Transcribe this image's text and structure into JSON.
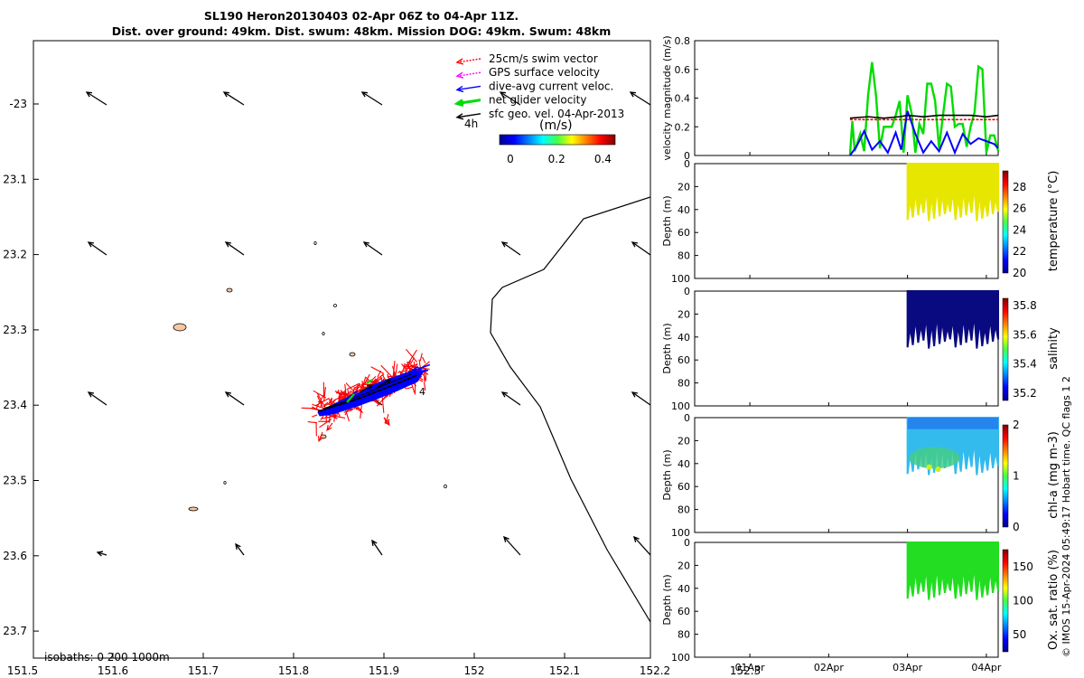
{
  "title": {
    "line1": "SL190 Heron20130403 02-Apr 06Z to 04-Apr 11Z.",
    "line2": "Dist. over ground: 49km. Dist. swum: 48km. Mission DOG: 49km. Swum: 48km"
  },
  "colors": {
    "swim_vector": "#ff0000",
    "gps_surface": "#ff00ff",
    "dive_avg": "#0000ff",
    "net_glider": "#00dd00",
    "sfc_geo": "#000000",
    "yellow_temp": "#e6e600",
    "navy_sal": "#0a0a80",
    "green_ox": "#22dd22",
    "reef": "#f7c8a0"
  },
  "map": {
    "x_ticks": [
      "151.5",
      "151.6",
      "151.7",
      "151.8",
      "151.9",
      "152",
      "152.1",
      "152.2",
      "152.3"
    ],
    "y_ticks": [
      "-23",
      "23.1",
      "23.2",
      "23.3",
      "23.4",
      "23.5",
      "23.6",
      "23.7"
    ],
    "legend": [
      {
        "label": "25cm/s swim vector",
        "color": "#ff0000"
      },
      {
        "label": "GPS surface velocity",
        "color": "#ff00ff"
      },
      {
        "label": "dive-avg current veloc.",
        "color": "#0000ff"
      },
      {
        "label": "net glider velocity",
        "color": "#00dd00"
      },
      {
        "label": "sfc geo. vel. 04-Apr-2013",
        "color": "#000000"
      }
    ],
    "time_step_label": "4h",
    "colorbar_unit": "(m/s)",
    "colorbar_ticks": [
      "0",
      "0.2",
      "0.4"
    ],
    "isobaths_label": "isobaths: 0   200  1000m",
    "track_end_label": "4"
  },
  "chart_data": [
    {
      "type": "line",
      "title": "",
      "ylabel": "velocity magnitude (m/s)",
      "ylim": [
        0,
        0.8
      ],
      "y_ticks": [
        "0",
        "0.2",
        "0.4",
        "0.6",
        "0.8"
      ],
      "x_ticks": [
        "01Apr",
        "02Apr",
        "03Apr",
        "04Apr"
      ],
      "x_range_days": [
        0.3,
        4.15
      ],
      "series": [
        {
          "name": "net glider velocity",
          "color": "#00dd00",
          "x": [
            2.27,
            2.3,
            2.33,
            2.4,
            2.45,
            2.5,
            2.55,
            2.6,
            2.65,
            2.7,
            2.75,
            2.8,
            2.85,
            2.9,
            2.95,
            3.0,
            3.05,
            3.1,
            3.15,
            3.2,
            3.25,
            3.3,
            3.35,
            3.4,
            3.45,
            3.5,
            3.55,
            3.6,
            3.65,
            3.7,
            3.75,
            3.8,
            3.85,
            3.9,
            3.95,
            4.0,
            4.05,
            4.1,
            4.15
          ],
          "y": [
            0.0,
            0.24,
            0.03,
            0.15,
            0.03,
            0.42,
            0.65,
            0.42,
            0.05,
            0.2,
            0.2,
            0.2,
            0.28,
            0.38,
            0.02,
            0.42,
            0.3,
            0.02,
            0.22,
            0.15,
            0.5,
            0.5,
            0.38,
            0.05,
            0.28,
            0.5,
            0.48,
            0.2,
            0.22,
            0.22,
            0.06,
            0.2,
            0.3,
            0.62,
            0.6,
            0.02,
            0.14,
            0.14,
            0.03
          ]
        },
        {
          "name": "dive-avg current veloc.",
          "color": "#0000ff",
          "x": [
            2.27,
            2.35,
            2.45,
            2.55,
            2.65,
            2.75,
            2.85,
            2.92,
            3.0,
            3.1,
            3.2,
            3.3,
            3.4,
            3.5,
            3.6,
            3.7,
            3.8,
            3.9,
            4.0,
            4.1,
            4.15
          ],
          "y": [
            0.0,
            0.06,
            0.17,
            0.04,
            0.1,
            0.02,
            0.16,
            0.04,
            0.31,
            0.15,
            0.02,
            0.1,
            0.03,
            0.16,
            0.02,
            0.15,
            0.08,
            0.12,
            0.1,
            0.08,
            0.05
          ]
        },
        {
          "name": "25cm/s swim vector",
          "color": "#ff0000",
          "x": [
            2.27,
            2.5,
            2.7,
            2.9,
            3.1,
            3.3,
            3.5,
            3.7,
            3.9,
            4.15
          ],
          "y": [
            0.25,
            0.25,
            0.25,
            0.25,
            0.25,
            0.25,
            0.25,
            0.25,
            0.25,
            0.25
          ]
        },
        {
          "name": "sfc geo. vel.",
          "color": "#000000",
          "x": [
            2.27,
            2.5,
            2.7,
            2.9,
            3.0,
            3.2,
            3.4,
            3.6,
            3.8,
            4.0,
            4.15
          ],
          "y": [
            0.26,
            0.27,
            0.26,
            0.27,
            0.28,
            0.27,
            0.28,
            0.28,
            0.28,
            0.27,
            0.28
          ]
        }
      ]
    },
    {
      "type": "scatter",
      "ylabel": "Depth (m)",
      "colorbar_label": "temperature (°C)",
      "colorbar_ticks": [
        "20",
        "22",
        "24",
        "26",
        "28"
      ],
      "ylim": [
        0,
        100
      ],
      "y_ticks": [
        "0",
        "20",
        "40",
        "60",
        "80",
        "100"
      ],
      "x_range_days": [
        3.0,
        4.15
      ],
      "fill_color": "#e6e600",
      "value_range": [
        20,
        29.5
      ]
    },
    {
      "type": "scatter",
      "ylabel": "Depth (m)",
      "colorbar_label": "salinity",
      "colorbar_ticks": [
        "35.2",
        "35.4",
        "35.6",
        "35.8"
      ],
      "ylim": [
        0,
        100
      ],
      "y_ticks": [
        "0",
        "20",
        "40",
        "60",
        "80",
        "100"
      ],
      "x_range_days": [
        3.0,
        4.15
      ],
      "fill_color": "#0a0a80",
      "value_range": [
        35.15,
        35.85
      ]
    },
    {
      "type": "scatter",
      "ylabel": "Depth (m)",
      "colorbar_label": "chl-a (mg m-3)",
      "colorbar_ticks": [
        "0",
        "1",
        "2"
      ],
      "ylim": [
        0,
        100
      ],
      "y_ticks": [
        "0",
        "20",
        "40",
        "60",
        "80",
        "100"
      ],
      "x_range_days": [
        3.0,
        4.15
      ],
      "fill_color": "#33bbee",
      "value_range": [
        0,
        2
      ]
    },
    {
      "type": "scatter",
      "ylabel": "Depth (m)",
      "colorbar_label": "Ox. sat. ratio (%)",
      "colorbar_ticks": [
        "50",
        "100",
        "150"
      ],
      "ylim": [
        0,
        100
      ],
      "y_ticks": [
        "0",
        "20",
        "40",
        "60",
        "80",
        "100"
      ],
      "x_range_days": [
        3.0,
        4.15
      ],
      "fill_color": "#22dd22",
      "value_range": [
        25,
        175
      ]
    }
  ],
  "side_note": "© IMOS 15-Apr-2024 05:49:17 Hobart time. QC flags 1  2"
}
